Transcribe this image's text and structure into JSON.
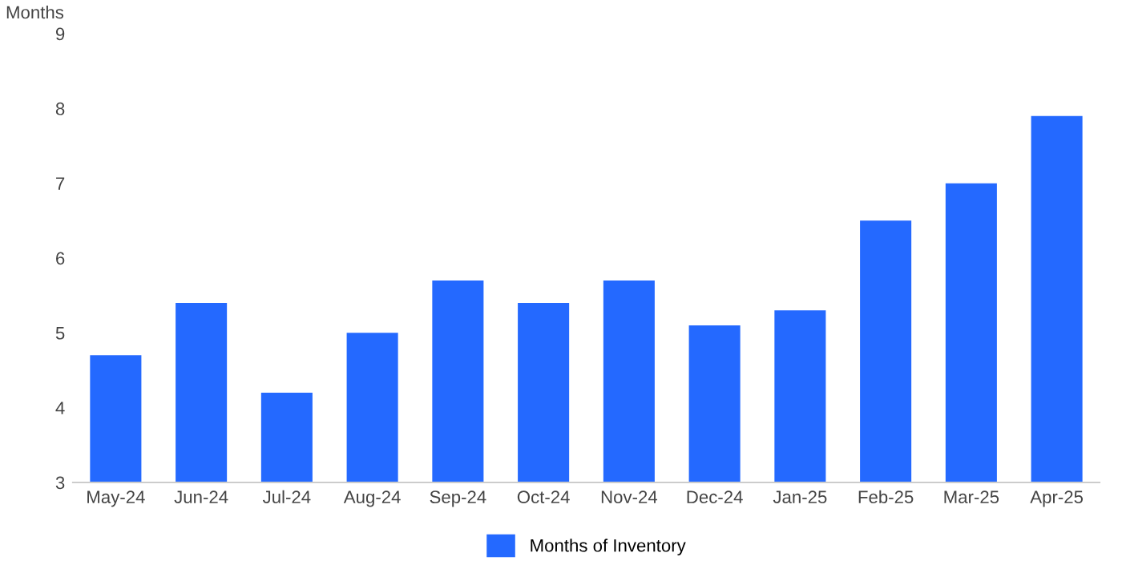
{
  "chart_data": {
    "type": "bar",
    "ylabel": "Months",
    "categories": [
      "May-24",
      "Jun-24",
      "Jul-24",
      "Aug-24",
      "Sep-24",
      "Oct-24",
      "Nov-24",
      "Dec-24",
      "Jan-25",
      "Feb-25",
      "Mar-25",
      "Apr-25"
    ],
    "series": [
      {
        "name": "Months of Inventory",
        "color": "#2469ff",
        "values": [
          4.7,
          5.4,
          4.2,
          5.0,
          5.7,
          5.4,
          5.7,
          5.1,
          5.3,
          6.5,
          7.0,
          7.9
        ]
      }
    ],
    "ylim": [
      3,
      9
    ],
    "yticks": [
      3,
      4,
      5,
      6,
      7,
      8,
      9
    ],
    "grid": false,
    "legend": "bottom"
  }
}
